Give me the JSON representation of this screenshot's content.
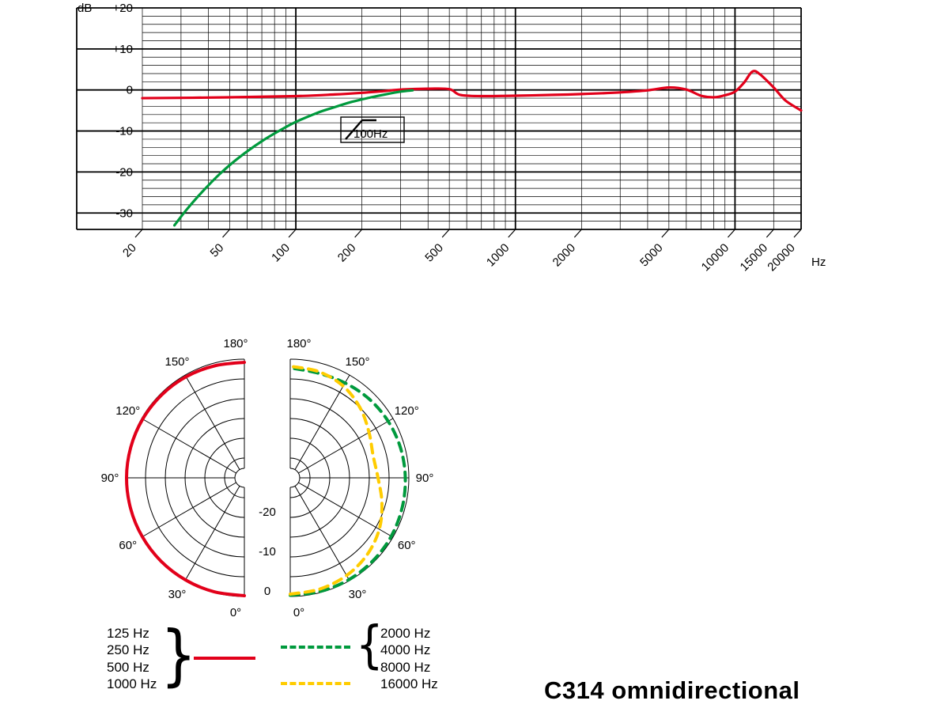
{
  "title": "C314 omnidirectional",
  "colors": {
    "red": "#e2001a",
    "green": "#009a3d",
    "yellow": "#ffcc00",
    "grid": "#000000"
  },
  "chart_data": [
    {
      "type": "line",
      "name": "frequency-response",
      "x_scale": "log",
      "xlim": [
        20,
        20000
      ],
      "ylim": [
        -34,
        20
      ],
      "xlabel": "Hz",
      "ylabel": "dB",
      "yticks": [
        {
          "v": 20,
          "label": "+20"
        },
        {
          "v": 10,
          "label": "+10"
        },
        {
          "v": 0,
          "label": "0"
        },
        {
          "v": -10,
          "label": "-10"
        },
        {
          "v": -20,
          "label": "-20"
        },
        {
          "v": -30,
          "label": "-30"
        }
      ],
      "xticks": [
        20,
        50,
        100,
        200,
        500,
        1000,
        2000,
        5000,
        10000,
        15000,
        20000
      ],
      "annotation": {
        "label": "100Hz"
      },
      "series": [
        {
          "name": "frequency-response-curve",
          "color": "#e2001a",
          "style": "solid",
          "points": [
            [
              20,
              -2
            ],
            [
              50,
              -1.8
            ],
            [
              100,
              -1.5
            ],
            [
              150,
              -1.1
            ],
            [
              200,
              -0.7
            ],
            [
              250,
              -0.3
            ],
            [
              300,
              0.1
            ],
            [
              400,
              0.3
            ],
            [
              500,
              0.2
            ],
            [
              560,
              -1.2
            ],
            [
              700,
              -1.5
            ],
            [
              1000,
              -1.4
            ],
            [
              1500,
              -1.2
            ],
            [
              2000,
              -1
            ],
            [
              3000,
              -0.6
            ],
            [
              4000,
              -0.1
            ],
            [
              5000,
              0.6
            ],
            [
              6000,
              0.1
            ],
            [
              7000,
              -1.4
            ],
            [
              8000,
              -1.8
            ],
            [
              9000,
              -1.3
            ],
            [
              10000,
              -0.4
            ],
            [
              11000,
              1.8
            ],
            [
              12000,
              4.5
            ],
            [
              13000,
              3.8
            ],
            [
              15000,
              0.6
            ],
            [
              17000,
              -2.6
            ],
            [
              20000,
              -5
            ]
          ]
        },
        {
          "name": "bass-cut-filter-curve",
          "color": "#009a3d",
          "style": "solid",
          "points": [
            [
              28,
              -33
            ],
            [
              32,
              -29
            ],
            [
              38,
              -24.5
            ],
            [
              45,
              -20.5
            ],
            [
              55,
              -16.5
            ],
            [
              70,
              -12.5
            ],
            [
              85,
              -9.8
            ],
            [
              100,
              -7.8
            ],
            [
              125,
              -5.6
            ],
            [
              150,
              -4.2
            ],
            [
              180,
              -2.9
            ],
            [
              220,
              -1.8
            ],
            [
              260,
              -1
            ],
            [
              300,
              -0.4
            ],
            [
              340,
              -0.1
            ]
          ]
        }
      ]
    },
    {
      "type": "polar",
      "name": "polar-pattern",
      "rings_db": [
        0,
        -5,
        -10,
        -15,
        -20,
        -25
      ],
      "ring_labels": [
        "0",
        "-10",
        "-20"
      ],
      "ring_label_values": [
        0,
        -10,
        -20
      ],
      "angle_labels": [
        "0°",
        "30°",
        "60°",
        "90°",
        "120°",
        "150°",
        "180°"
      ],
      "scale_min_db": -30,
      "halves": [
        {
          "side": "left",
          "series": [
            {
              "name": "125-1000Hz-pattern",
              "color": "#e2001a",
              "dash": "solid",
              "points": [
                [
                  0,
                  -0.2
                ],
                [
                  15,
                  -0.2
                ],
                [
                  30,
                  -0.2
                ],
                [
                  45,
                  -0.2
                ],
                [
                  60,
                  -0.2
                ],
                [
                  75,
                  -0.2
                ],
                [
                  90,
                  -0.2
                ],
                [
                  105,
                  -0.25
                ],
                [
                  120,
                  -0.3
                ],
                [
                  135,
                  -0.4
                ],
                [
                  150,
                  -0.5
                ],
                [
                  165,
                  -0.7
                ],
                [
                  180,
                  -0.8
                ]
              ]
            }
          ]
        },
        {
          "side": "right",
          "series": [
            {
              "name": "2000-8000Hz-pattern",
              "color": "#009a3d",
              "dash": "dashed",
              "points": [
                [
                  0,
                  -0.3
                ],
                [
                  15,
                  -0.3
                ],
                [
                  30,
                  -0.3
                ],
                [
                  45,
                  -0.4
                ],
                [
                  60,
                  -0.5
                ],
                [
                  75,
                  -0.7
                ],
                [
                  90,
                  -0.9
                ],
                [
                  105,
                  -1.1
                ],
                [
                  120,
                  -1.4
                ],
                [
                  135,
                  -1.8
                ],
                [
                  150,
                  -2.3
                ],
                [
                  165,
                  -2.6
                ],
                [
                  180,
                  -2.2
                ]
              ]
            },
            {
              "name": "16000Hz-pattern",
              "color": "#ffcc00",
              "dash": "dashed",
              "points": [
                [
                  0,
                  -0.6
                ],
                [
                  15,
                  -0.9
                ],
                [
                  30,
                  -1.5
                ],
                [
                  45,
                  -2.5
                ],
                [
                  60,
                  -4
                ],
                [
                  75,
                  -6
                ],
                [
                  90,
                  -7.8
                ],
                [
                  105,
                  -8.3
                ],
                [
                  120,
                  -7
                ],
                [
                  135,
                  -5
                ],
                [
                  150,
                  -3.2
                ],
                [
                  165,
                  -2.2
                ],
                [
                  180,
                  -1.8
                ]
              ]
            }
          ]
        }
      ]
    }
  ],
  "legend": {
    "groups": [
      {
        "items": [
          "125 Hz",
          "250 Hz",
          "500 Hz",
          "1000 Hz"
        ],
        "brace": "}"
      },
      {
        "items": [
          "2000 Hz",
          "4000 Hz",
          "8000 Hz"
        ],
        "brace": "{"
      },
      {
        "items": [
          "16000 Hz"
        ]
      }
    ]
  }
}
